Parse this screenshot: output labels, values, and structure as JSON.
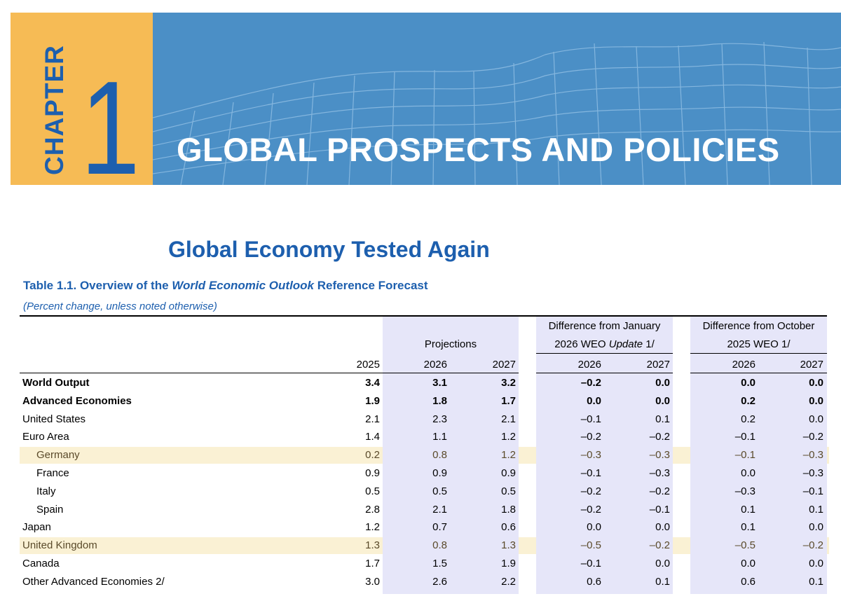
{
  "banner": {
    "chapter_word": "CHAPTER",
    "chapter_number": "1",
    "title": "GLOBAL PROSPECTS AND POLICIES"
  },
  "section_title": "Global Economy Tested Again",
  "table": {
    "title_prefix": "Table 1.1. Overview of the ",
    "title_italic": "World Economic Outlook",
    "title_suffix": " Reference Forecast",
    "subtitle": "(Percent change, unless noted otherwise)",
    "group_headers": {
      "projections": "Projections",
      "jan_line1": "Difference from January",
      "jan_line2_a": "2026 WEO ",
      "jan_line2_italic": "Update",
      "jan_line2_b": " 1/",
      "oct_line1": "Difference from October",
      "oct_line2": "2025 WEO 1/"
    },
    "columns": [
      "2025",
      "2026",
      "2027",
      "2026",
      "2027",
      "2026",
      "2027"
    ],
    "rows": [
      {
        "label": "World Output",
        "indent": false,
        "bold": true,
        "highlight": false,
        "values": [
          "3.4",
          "3.1",
          "3.2",
          "–0.2",
          "0.0",
          "0.0",
          "0.0"
        ]
      },
      {
        "label": "Advanced Economies",
        "indent": false,
        "bold": true,
        "highlight": false,
        "values": [
          "1.9",
          "1.8",
          "1.7",
          "0.0",
          "0.0",
          "0.2",
          "0.0"
        ]
      },
      {
        "label": "United States",
        "indent": false,
        "bold": false,
        "highlight": false,
        "values": [
          "2.1",
          "2.3",
          "2.1",
          "–0.1",
          "0.1",
          "0.2",
          "0.0"
        ]
      },
      {
        "label": "Euro Area",
        "indent": false,
        "bold": false,
        "highlight": false,
        "values": [
          "1.4",
          "1.1",
          "1.2",
          "–0.2",
          "–0.2",
          "–0.1",
          "–0.2"
        ]
      },
      {
        "label": "Germany",
        "indent": true,
        "bold": false,
        "highlight": true,
        "values": [
          "0.2",
          "0.8",
          "1.2",
          "–0.3",
          "–0.3",
          "–0.1",
          "–0.3"
        ]
      },
      {
        "label": "France",
        "indent": true,
        "bold": false,
        "highlight": false,
        "values": [
          "0.9",
          "0.9",
          "0.9",
          "–0.1",
          "–0.3",
          "0.0",
          "–0.3"
        ]
      },
      {
        "label": "Italy",
        "indent": true,
        "bold": false,
        "highlight": false,
        "values": [
          "0.5",
          "0.5",
          "0.5",
          "–0.2",
          "–0.2",
          "–0.3",
          "–0.1"
        ]
      },
      {
        "label": "Spain",
        "indent": true,
        "bold": false,
        "highlight": false,
        "values": [
          "2.8",
          "2.1",
          "1.8",
          "–0.2",
          "–0.1",
          "0.1",
          "0.1"
        ]
      },
      {
        "label": "Japan",
        "indent": false,
        "bold": false,
        "highlight": false,
        "values": [
          "1.2",
          "0.7",
          "0.6",
          "0.0",
          "0.0",
          "0.1",
          "0.0"
        ]
      },
      {
        "label": "United Kingdom",
        "indent": false,
        "bold": false,
        "highlight": true,
        "values": [
          "1.3",
          "0.8",
          "1.3",
          "–0.5",
          "–0.2",
          "–0.5",
          "–0.2"
        ]
      },
      {
        "label": "Canada",
        "indent": false,
        "bold": false,
        "highlight": false,
        "values": [
          "1.7",
          "1.5",
          "1.9",
          "–0.1",
          "0.0",
          "0.0",
          "0.0"
        ]
      },
      {
        "label": "Other Advanced Economies 2/",
        "indent": false,
        "bold": false,
        "highlight": false,
        "values": [
          "3.0",
          "2.6",
          "2.2",
          "0.6",
          "0.1",
          "0.6",
          "0.1"
        ]
      }
    ]
  },
  "colors": {
    "banner_blue": "#4b8fc6",
    "chapter_orange": "#f6bb55",
    "title_blue": "#1d5fae",
    "column_shade": "#e6e6f9",
    "row_highlight": "#faf1d4"
  }
}
